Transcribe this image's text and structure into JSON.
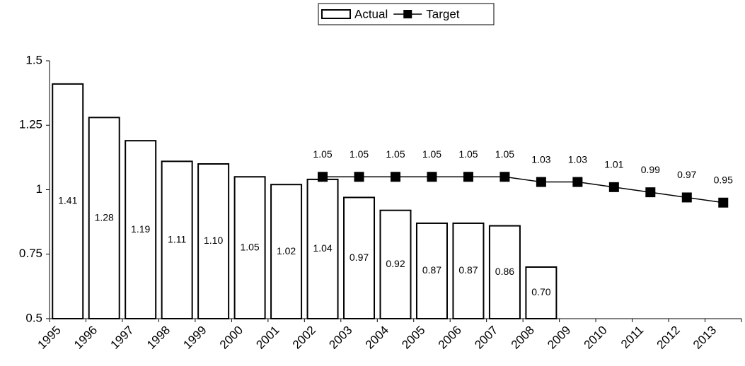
{
  "chart_data": {
    "type": "bar",
    "categories": [
      "1995",
      "1996",
      "1997",
      "1998",
      "1999",
      "2000",
      "2001",
      "2002",
      "2003",
      "2004",
      "2005",
      "2006",
      "2007",
      "2008",
      "2009",
      "2010",
      "2011",
      "2012",
      "2013"
    ],
    "series": [
      {
        "name": "Actual",
        "type": "bar",
        "color": "#ffffff",
        "values": [
          1.41,
          1.28,
          1.19,
          1.11,
          1.1,
          1.05,
          1.02,
          1.04,
          0.97,
          0.92,
          0.87,
          0.87,
          0.86,
          0.7,
          null,
          null,
          null,
          null,
          null
        ],
        "value_labels": [
          "1.41",
          "1.28",
          "1.19",
          "1.11",
          "1.10",
          "1.05",
          "1.02",
          "1.04",
          "0.97",
          "0.92",
          "0.87",
          "0.87",
          "0.86",
          "0.70",
          null,
          null,
          null,
          null,
          null
        ]
      },
      {
        "name": "Target",
        "type": "line",
        "color": "#000000",
        "values": [
          null,
          null,
          null,
          null,
          null,
          null,
          null,
          1.05,
          1.05,
          1.05,
          1.05,
          1.05,
          1.05,
          1.03,
          1.03,
          1.01,
          0.99,
          0.97,
          0.95
        ],
        "value_labels": [
          null,
          null,
          null,
          null,
          null,
          null,
          null,
          "1.05",
          "1.05",
          "1.05",
          "1.05",
          "1.05",
          "1.05",
          "1.03",
          "1.03",
          "1.01",
          "0.99",
          "0.97",
          "0.95"
        ]
      }
    ],
    "ylim": [
      0.5,
      1.5
    ],
    "yticks": [
      0.5,
      0.75,
      1,
      1.25,
      1.5
    ],
    "grid": false,
    "legend": "top"
  }
}
